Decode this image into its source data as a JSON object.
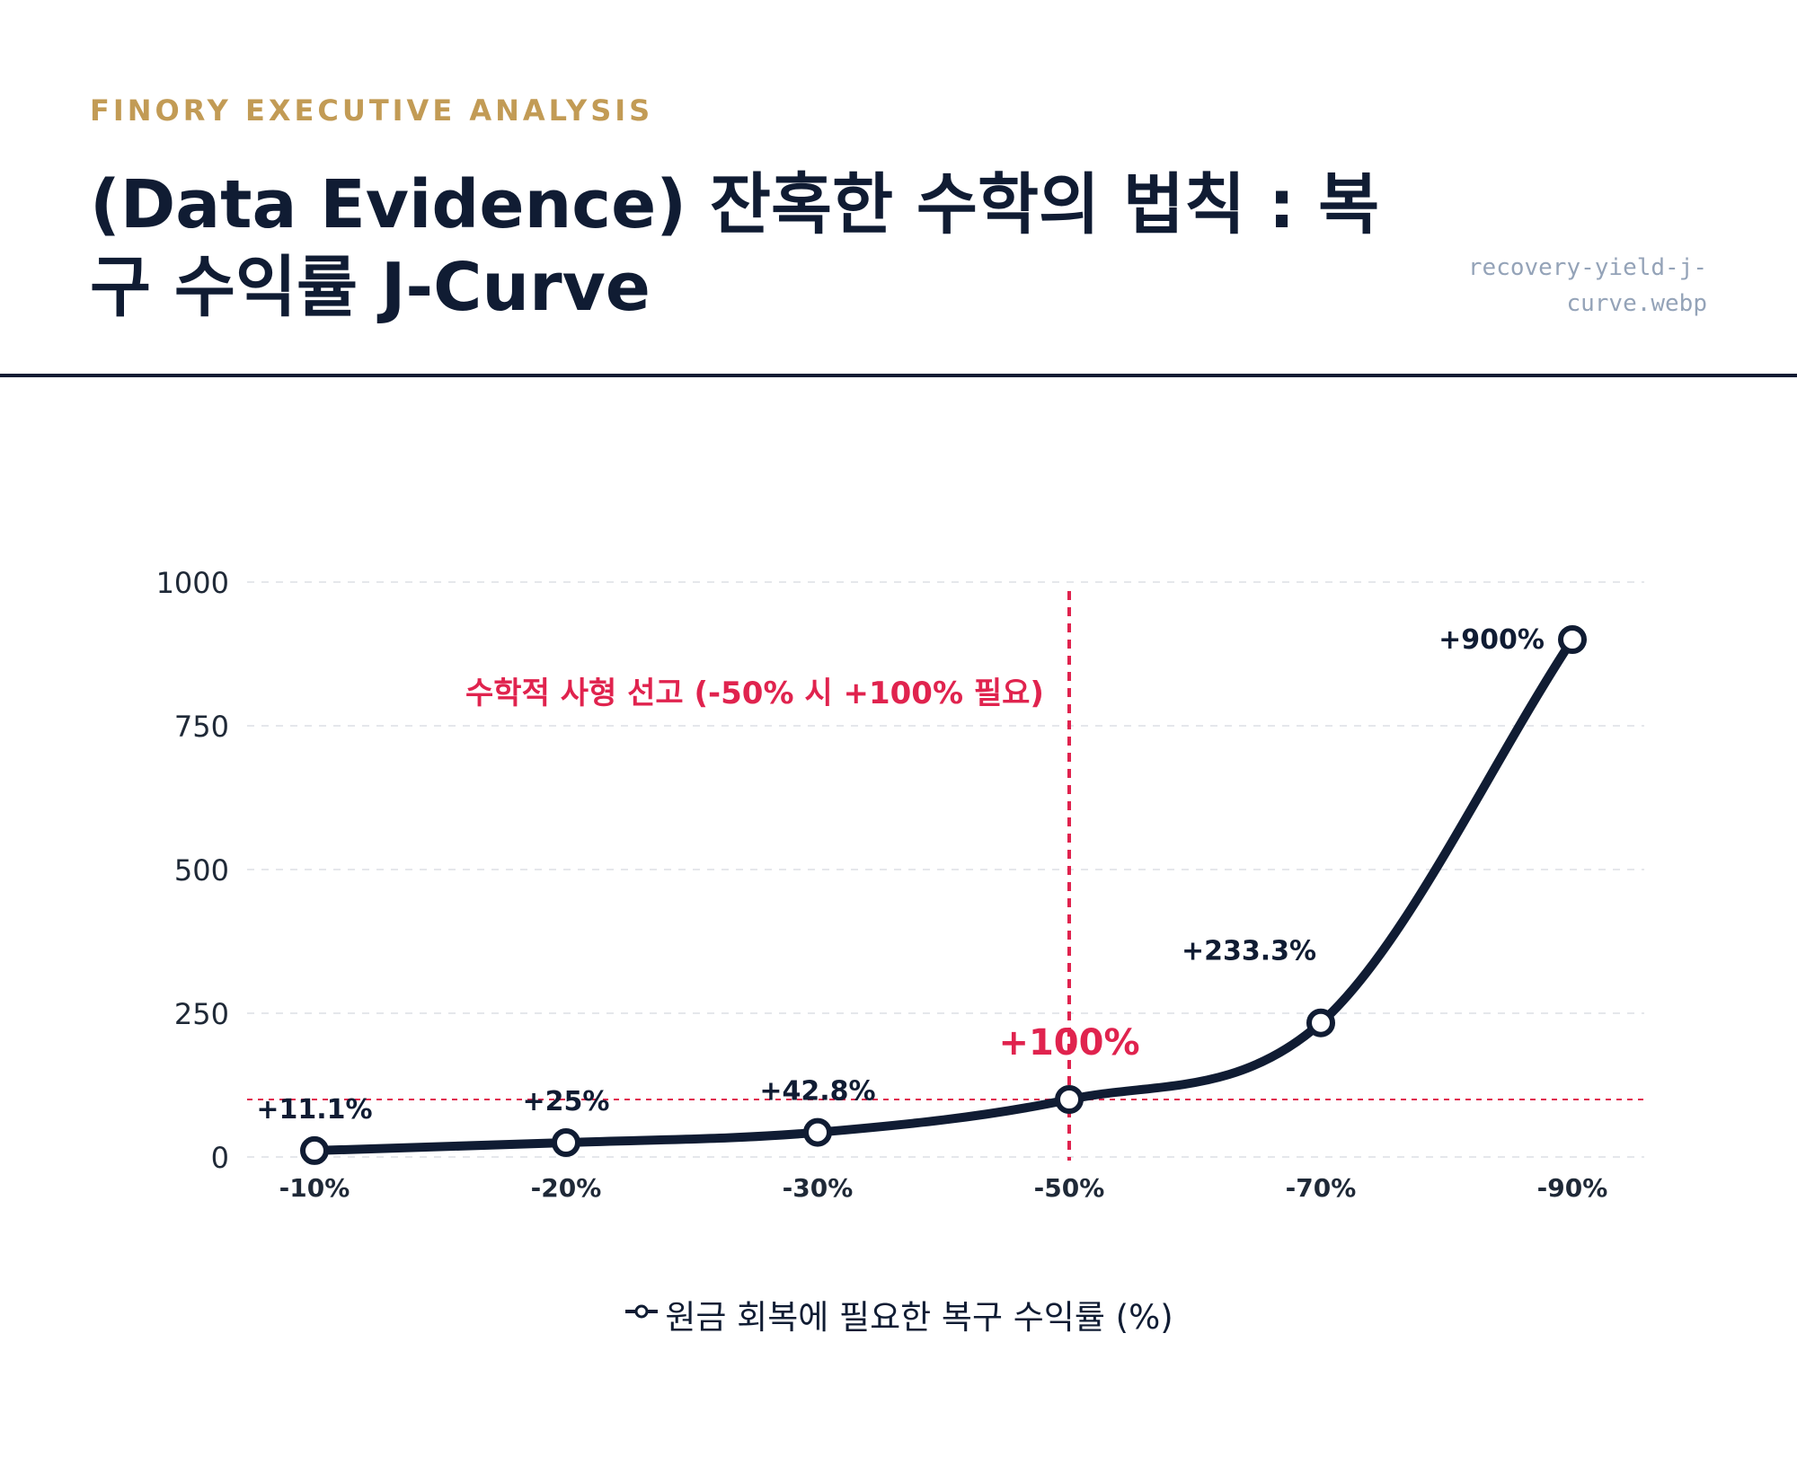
{
  "header": {
    "eyebrow": "FINORY EXECUTIVE ANALYSIS",
    "title": "(Data Evidence) 잔혹한 수학의 법칙 : 복구 수익률 J-Curve",
    "filename": "recovery-yield-j-curve.webp"
  },
  "colors": {
    "accent": "#c29b55",
    "navy": "#101c33",
    "red": "#e0234e",
    "grid": "#e5e7eb",
    "muted": "#94a3b8"
  },
  "chart_data": {
    "type": "line",
    "title": "",
    "xlabel": "",
    "ylabel": "",
    "categories": [
      "-10%",
      "-20%",
      "-30%",
      "-50%",
      "-70%",
      "-90%"
    ],
    "series": [
      {
        "name": "원금 회복에 필요한 복구 수익률 (%)",
        "values": [
          11.1,
          25,
          42.8,
          100,
          233.3,
          900
        ],
        "labels": [
          "+11.1%",
          "+25%",
          "+42.8%",
          "+100%",
          "+233.3%",
          "+900%"
        ],
        "color": "#101c33"
      }
    ],
    "ylim": [
      0,
      1000
    ],
    "yticks": [
      0,
      250,
      500,
      750,
      1000
    ],
    "grid": true,
    "legend": "bottom-center",
    "annotations": {
      "vertical_line_category": "-50%",
      "horizontal_line_value": 100,
      "text": "수학적 사형 선고 (-50% 시 +100% 필요)",
      "highlight_index": 3
    }
  }
}
